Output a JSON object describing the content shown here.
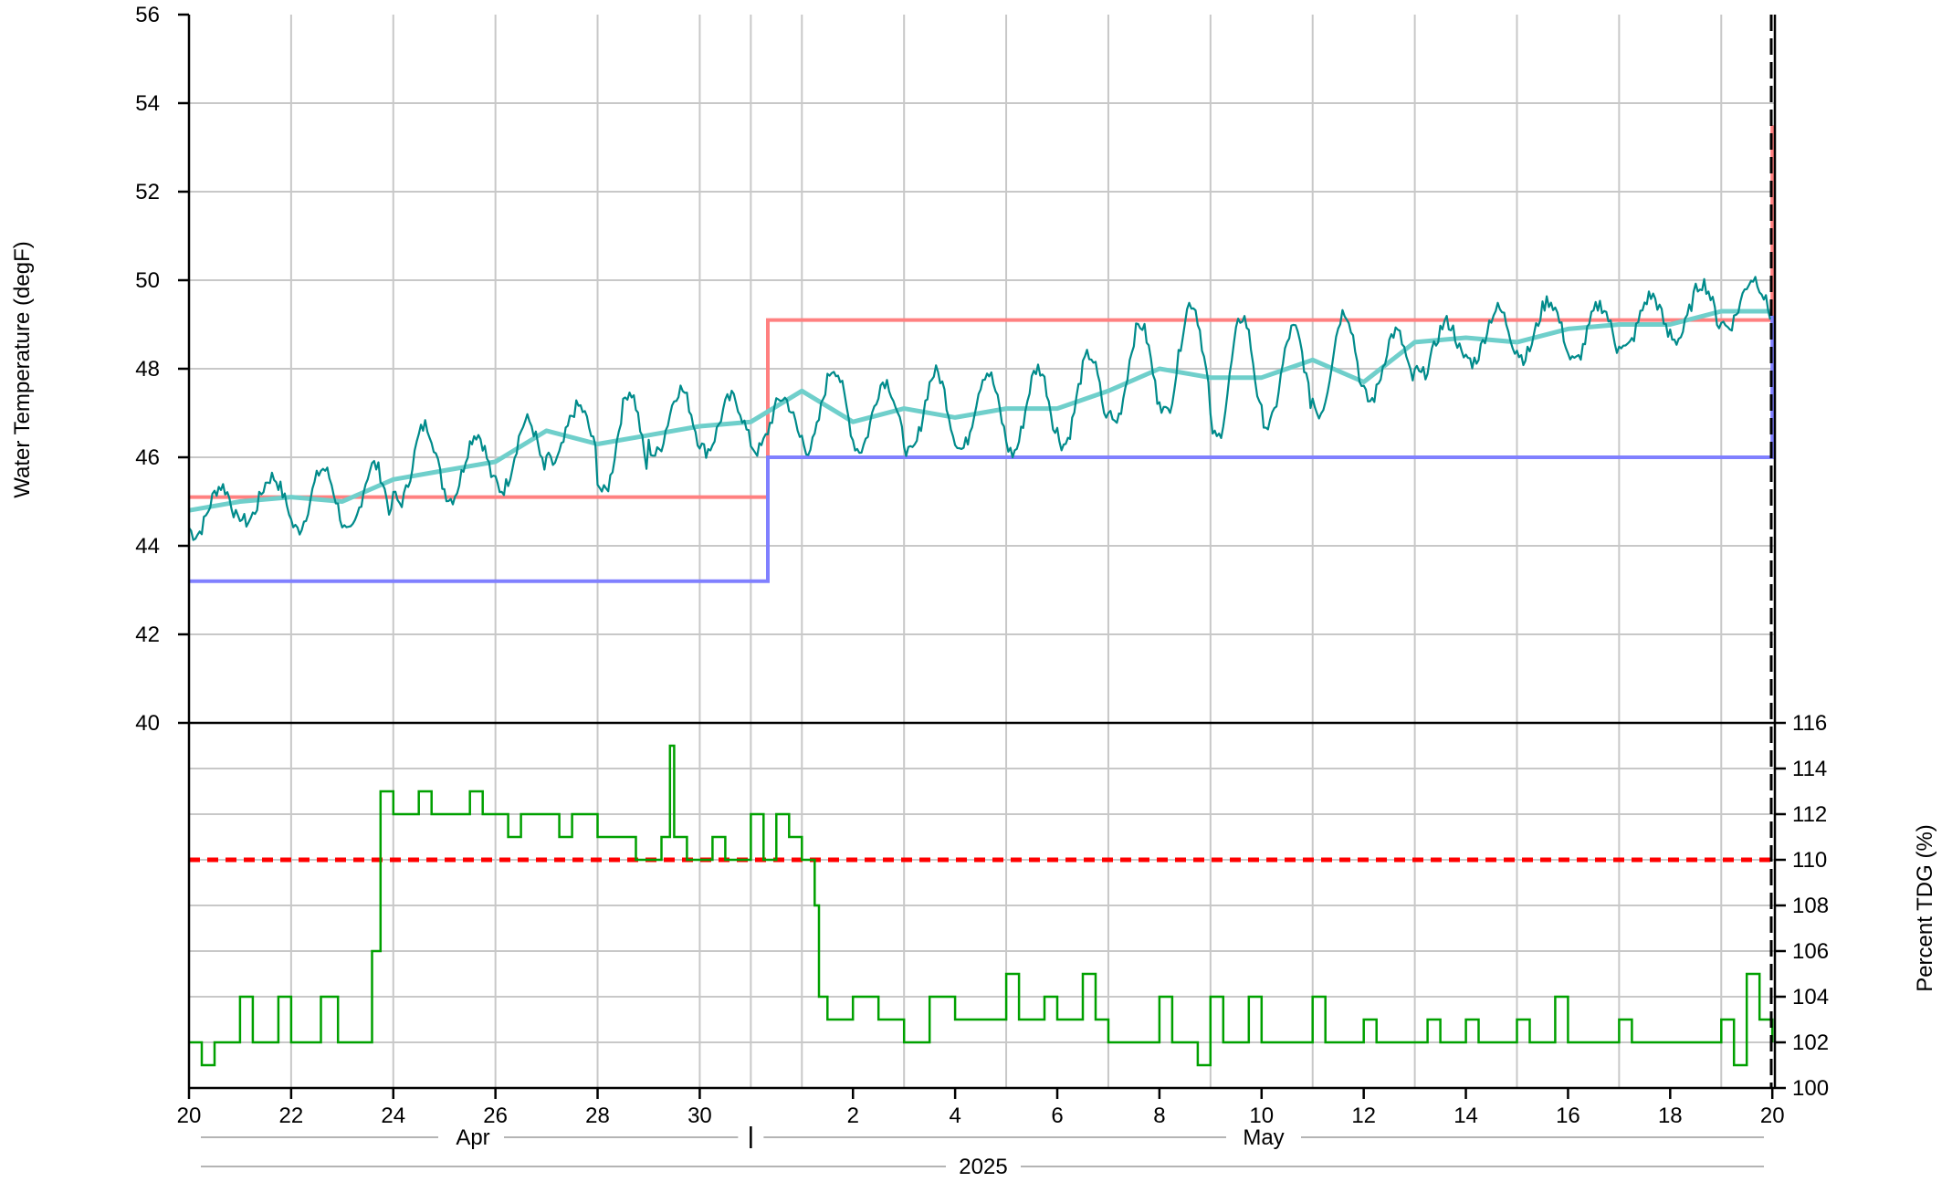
{
  "colors": {
    "temp_line": "#008b8b",
    "temp_avg": "#6fcfcb",
    "upper_limit": "#ff8080",
    "lower_limit": "#8080ff",
    "tdg_line": "#00a000",
    "tdg_threshold": "#ff0000",
    "grid": "#c8c8c8",
    "current_time_marker": "#000000"
  },
  "chart_data": [
    {
      "panel": "top",
      "type": "line",
      "ylabel": "Water Temperature (degF)",
      "ylim": [
        40,
        56
      ],
      "yticks": [
        40,
        42,
        44,
        46,
        48,
        50,
        52,
        54,
        56
      ],
      "xlim_days_since_apr20": [
        0,
        31.05
      ],
      "x_tick_labels": [
        "20",
        "22",
        "24",
        "26",
        "28",
        "30",
        "2",
        "4",
        "6",
        "8",
        "10",
        "12",
        "14",
        "16",
        "18",
        "20"
      ],
      "grid": true,
      "series": [
        {
          "role": "upper-criterion",
          "style": "step",
          "points": [
            [
              "2025-04-20",
              45.1
            ],
            [
              "2025-05-01 08:00",
              45.1
            ],
            [
              "2025-05-01 08:00",
              49.1
            ],
            [
              "2025-05-21",
              49.1
            ],
            [
              "2025-05-21",
              53.5
            ]
          ]
        },
        {
          "role": "lower-criterion",
          "style": "step",
          "points": [
            [
              "2025-04-20",
              43.2
            ],
            [
              "2025-05-01 08:00",
              43.2
            ],
            [
              "2025-05-01 08:00",
              46.0
            ],
            [
              "2025-05-21",
              46.0
            ],
            [
              "2025-05-21",
              49.2
            ]
          ]
        },
        {
          "role": "daily-average",
          "style": "smooth",
          "points": [
            [
              "2025-04-20",
              44.8
            ],
            [
              "2025-04-21",
              45.0
            ],
            [
              "2025-04-22",
              45.1
            ],
            [
              "2025-04-23",
              45.0
            ],
            [
              "2025-04-24",
              45.5
            ],
            [
              "2025-04-25",
              45.7
            ],
            [
              "2025-04-26",
              45.9
            ],
            [
              "2025-04-27",
              46.6
            ],
            [
              "2025-04-28",
              46.3
            ],
            [
              "2025-04-29",
              46.5
            ],
            [
              "2025-04-30",
              46.7
            ],
            [
              "2025-05-01",
              46.8
            ],
            [
              "2025-05-02",
              47.5
            ],
            [
              "2025-05-03",
              46.8
            ],
            [
              "2025-05-04",
              47.1
            ],
            [
              "2025-05-05",
              46.9
            ],
            [
              "2025-05-06",
              47.1
            ],
            [
              "2025-05-07",
              47.1
            ],
            [
              "2025-05-08",
              47.5
            ],
            [
              "2025-05-09",
              48.0
            ],
            [
              "2025-05-10",
              47.8
            ],
            [
              "2025-05-11",
              47.8
            ],
            [
              "2025-05-12",
              48.2
            ],
            [
              "2025-05-13",
              47.7
            ],
            [
              "2025-05-14",
              48.6
            ],
            [
              "2025-05-15",
              48.7
            ],
            [
              "2025-05-16",
              48.6
            ],
            [
              "2025-05-17",
              48.9
            ],
            [
              "2025-05-18",
              49.0
            ],
            [
              "2025-05-19",
              49.0
            ],
            [
              "2025-05-20",
              49.3
            ],
            [
              "2025-05-21",
              49.3
            ]
          ]
        },
        {
          "role": "hourly-temperature",
          "style": "diurnal",
          "daily_minmax": [
            [
              44.2,
              45.4
            ],
            [
              44.5,
              45.6
            ],
            [
              44.3,
              45.8
            ],
            [
              44.2,
              45.9
            ],
            [
              44.9,
              46.8
            ],
            [
              45.0,
              46.6
            ],
            [
              45.2,
              46.9
            ],
            [
              45.8,
              47.2
            ],
            [
              45.1,
              47.6
            ],
            [
              46.0,
              47.6
            ],
            [
              46.1,
              47.4
            ],
            [
              46.1,
              47.4
            ],
            [
              46.1,
              48.1
            ],
            [
              46.1,
              47.8
            ],
            [
              46.0,
              48.0
            ],
            [
              46.1,
              48.0
            ],
            [
              46.0,
              48.1
            ],
            [
              46.2,
              48.4
            ],
            [
              46.7,
              49.1
            ],
            [
              46.9,
              49.6
            ],
            [
              46.3,
              49.3
            ],
            [
              46.6,
              49.0
            ],
            [
              46.9,
              49.4
            ],
            [
              47.2,
              48.9
            ],
            [
              47.8,
              49.1
            ],
            [
              48.1,
              49.4
            ],
            [
              48.2,
              49.6
            ],
            [
              48.1,
              49.5
            ],
            [
              48.4,
              49.7
            ],
            [
              48.6,
              50.0
            ],
            [
              48.9,
              50.1
            ]
          ]
        }
      ]
    },
    {
      "panel": "bottom",
      "type": "line",
      "ylabel": "Percent TDG (%)",
      "ylim": [
        100,
        116
      ],
      "yticks": [
        100,
        102,
        104,
        106,
        108,
        110,
        112,
        114,
        116
      ],
      "grid": true,
      "threshold": 110,
      "series": [
        {
          "role": "tdg",
          "style": "stepped",
          "points": [
            [
              "2025-04-20",
              102
            ],
            [
              "2025-04-20 06:00",
              101
            ],
            [
              "2025-04-20 12:00",
              102
            ],
            [
              "2025-04-21",
              104
            ],
            [
              "2025-04-21 06:00",
              102
            ],
            [
              "2025-04-21 18:00",
              104
            ],
            [
              "2025-04-22",
              102
            ],
            [
              "2025-04-22 12:00",
              102
            ],
            [
              "2025-04-22 14:00",
              104
            ],
            [
              "2025-04-22 22:00",
              102
            ],
            [
              "2025-04-23 12:00",
              102
            ],
            [
              "2025-04-23 14:00",
              106
            ],
            [
              "2025-04-23 18:00",
              113
            ],
            [
              "2025-04-24",
              112
            ],
            [
              "2025-04-24 12:00",
              113
            ],
            [
              "2025-04-24 18:00",
              112
            ],
            [
              "2025-04-25 12:00",
              113
            ],
            [
              "2025-04-25 18:00",
              112
            ],
            [
              "2025-04-26 06:00",
              111
            ],
            [
              "2025-04-26 12:00",
              112
            ],
            [
              "2025-04-27 06:00",
              111
            ],
            [
              "2025-04-27 12:00",
              112
            ],
            [
              "2025-04-28",
              111
            ],
            [
              "2025-04-28 12:00",
              111
            ],
            [
              "2025-04-28 18:00",
              110
            ],
            [
              "2025-04-29 06:00",
              111
            ],
            [
              "2025-04-29 10:00",
              115
            ],
            [
              "2025-04-29 12:00",
              111
            ],
            [
              "2025-04-29 18:00",
              110
            ],
            [
              "2025-04-30 06:00",
              111
            ],
            [
              "2025-04-30 12:00",
              110
            ],
            [
              "2025-05-01",
              112
            ],
            [
              "2025-05-01 06:00",
              110
            ],
            [
              "2025-05-01 12:00",
              112
            ],
            [
              "2025-05-01 18:00",
              111
            ],
            [
              "2025-05-02",
              110
            ],
            [
              "2025-05-02 06:00",
              108
            ],
            [
              "2025-05-02 08:00",
              104
            ],
            [
              "2025-05-02 12:00",
              103
            ],
            [
              "2025-05-03",
              104
            ],
            [
              "2025-05-03 12:00",
              103
            ],
            [
              "2025-05-04",
              102
            ],
            [
              "2025-05-04 12:00",
              104
            ],
            [
              "2025-05-05",
              103
            ],
            [
              "2025-05-05 12:00",
              103
            ],
            [
              "2025-05-06",
              105
            ],
            [
              "2025-05-06 06:00",
              103
            ],
            [
              "2025-05-06 18:00",
              104
            ],
            [
              "2025-05-07",
              103
            ],
            [
              "2025-05-07 12:00",
              105
            ],
            [
              "2025-05-07 18:00",
              103
            ],
            [
              "2025-05-08",
              102
            ],
            [
              "2025-05-08 12:00",
              102
            ],
            [
              "2025-05-09",
              104
            ],
            [
              "2025-05-09 06:00",
              102
            ],
            [
              "2025-05-09 18:00",
              101
            ],
            [
              "2025-05-10",
              104
            ],
            [
              "2025-05-10 06:00",
              102
            ],
            [
              "2025-05-10 18:00",
              104
            ],
            [
              "2025-05-11",
              102
            ],
            [
              "2025-05-12",
              104
            ],
            [
              "2025-05-12 06:00",
              102
            ],
            [
              "2025-05-13",
              103
            ],
            [
              "2025-05-13 06:00",
              102
            ],
            [
              "2025-05-14",
              102
            ],
            [
              "2025-05-14 06:00",
              103
            ],
            [
              "2025-05-14 12:00",
              102
            ],
            [
              "2025-05-15",
              103
            ],
            [
              "2025-05-15 06:00",
              102
            ],
            [
              "2025-05-16",
              103
            ],
            [
              "2025-05-16 06:00",
              102
            ],
            [
              "2025-05-16 18:00",
              104
            ],
            [
              "2025-05-17",
              102
            ],
            [
              "2025-05-18",
              103
            ],
            [
              "2025-05-18 06:00",
              102
            ],
            [
              "2025-05-18 12:00",
              102
            ],
            [
              "2025-05-19",
              102
            ],
            [
              "2025-05-19 12:00",
              102
            ],
            [
              "2025-05-20",
              103
            ],
            [
              "2025-05-20 06:00",
              101
            ],
            [
              "2025-05-20 12:00",
              105
            ],
            [
              "2025-05-20 18:00",
              103
            ],
            [
              "2025-05-21",
              102
            ]
          ]
        }
      ]
    }
  ],
  "x_axis": {
    "month_labels": [
      "Apr",
      "May"
    ],
    "year_label": "2025"
  },
  "labels": {
    "top_ylabel": "Water Temperature (degF)",
    "bottom_ylabel": "Percent TDG (%)"
  }
}
